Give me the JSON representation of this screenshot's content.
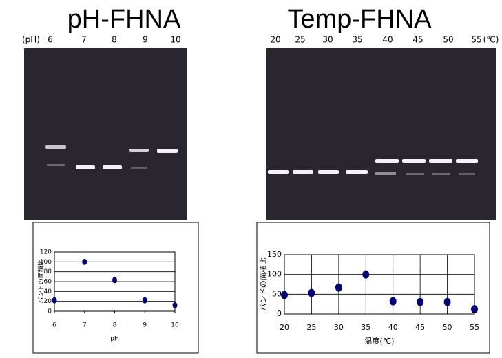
{
  "gels": [
    {
      "title": "pH-FHNA",
      "lanes": [
        "(pH)",
        "6",
        "7",
        "8",
        "9",
        "10"
      ]
    },
    {
      "title": "Temp-FHNA",
      "lanes": [
        "20",
        "25",
        "30",
        "35",
        "40",
        "45",
        "50",
        "55",
        "(℃)"
      ]
    }
  ],
  "chart_data": [
    {
      "type": "scatter",
      "x_label": "pH",
      "y_label": "バンドの面積比",
      "color": "#00007a",
      "grid": "y",
      "x": [
        6,
        7,
        8,
        9,
        10
      ],
      "values": [
        22,
        100,
        63,
        22,
        12
      ],
      "xlim": [
        6,
        10
      ],
      "xticks": [
        6,
        7,
        8,
        9,
        10
      ],
      "ylim": [
        0,
        120
      ],
      "yticks": [
        0,
        20,
        40,
        60,
        80,
        100,
        120
      ]
    },
    {
      "type": "scatter",
      "x_label": "温度(℃)",
      "y_label": "バンドの面積比",
      "color": "#00007a",
      "grid": "xy",
      "x": [
        20,
        25,
        30,
        35,
        40,
        45,
        50,
        55
      ],
      "values": [
        48,
        53,
        67,
        100,
        32,
        30,
        30,
        12
      ],
      "xlim": [
        20,
        55
      ],
      "xticks": [
        20,
        25,
        30,
        35,
        40,
        45,
        50,
        55
      ],
      "ylim": [
        0,
        150
      ],
      "yticks": [
        0,
        50,
        100,
        150
      ]
    }
  ]
}
